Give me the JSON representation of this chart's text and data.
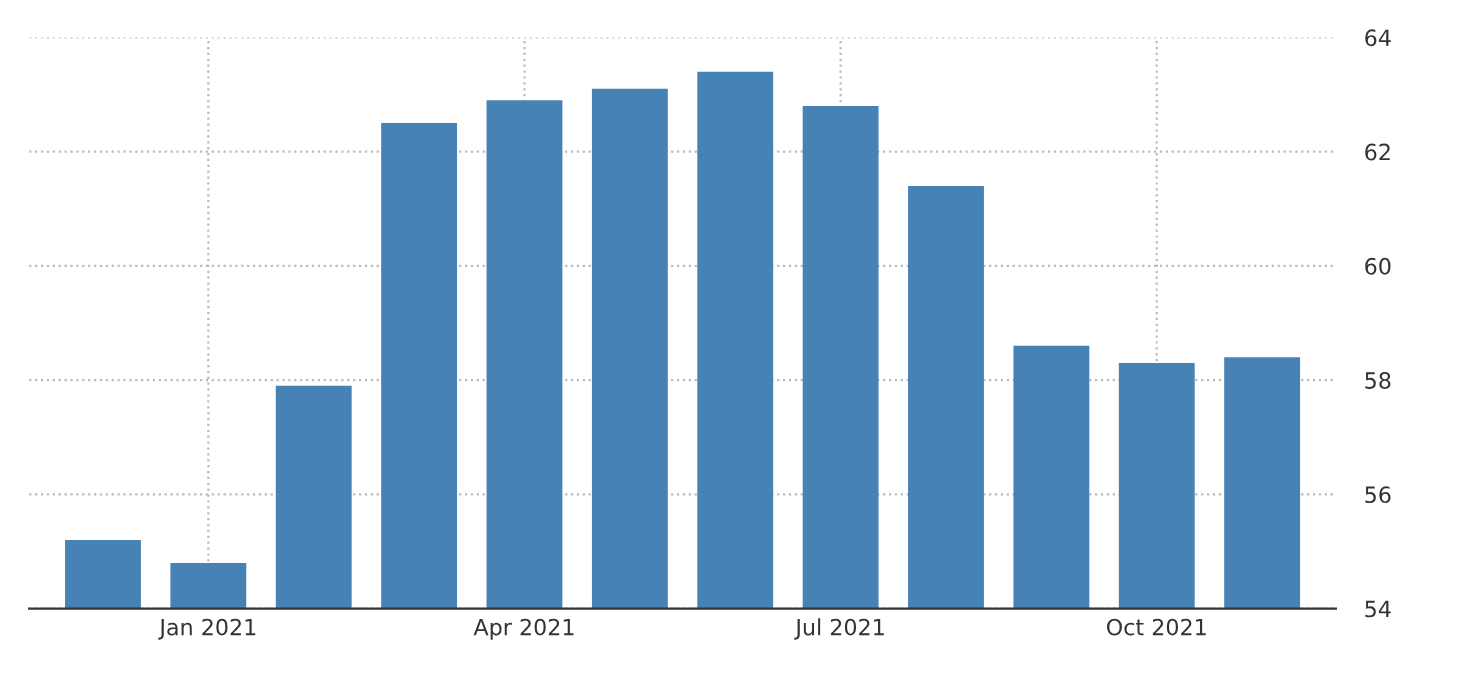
{
  "chart_data": {
    "type": "bar",
    "categories": [
      null,
      "Jan 2021",
      null,
      null,
      "Apr 2021",
      null,
      null,
      "Jul 2021",
      null,
      null,
      "Oct 2021",
      null
    ],
    "values": [
      55.2,
      54.8,
      57.9,
      62.5,
      62.9,
      63.1,
      63.4,
      62.8,
      61.4,
      58.6,
      58.3,
      58.4
    ],
    "color": "#4682b4",
    "ylim": [
      54,
      64
    ],
    "yticks": [
      54,
      56,
      58,
      60,
      62,
      64
    ],
    "grid": true
  }
}
